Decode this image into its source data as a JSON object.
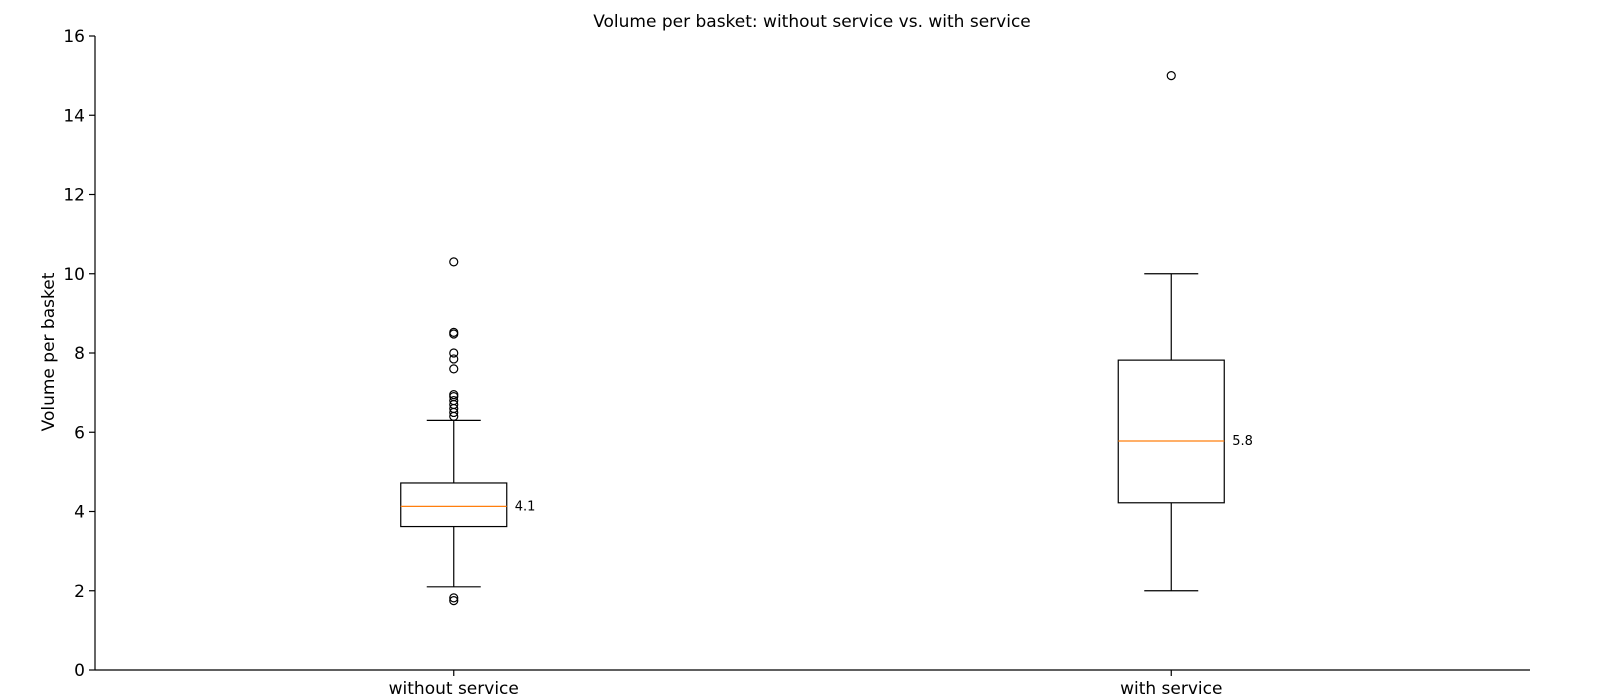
{
  "chart_data": {
    "type": "boxplot",
    "title": "Volume per basket: without service vs. with service",
    "xlabel": "",
    "ylabel": "Volume per basket",
    "ylim": [
      0,
      16
    ],
    "yticks": [
      "0",
      "2",
      "4",
      "6",
      "8",
      "10",
      "12",
      "14",
      "16"
    ],
    "grid": false,
    "categories": [
      "without service",
      "with service"
    ],
    "boxes": [
      {
        "category": "without service",
        "whisker_low": 2.1,
        "q1": 3.62,
        "median": 4.13,
        "q3": 4.72,
        "whisker_high": 6.3,
        "median_label": "4.1",
        "outliers": [
          1.75,
          1.82,
          6.4,
          6.5,
          6.6,
          6.7,
          6.8,
          6.9,
          6.95,
          7.6,
          7.85,
          8.0,
          8.48,
          8.52,
          10.3
        ]
      },
      {
        "category": "with service",
        "whisker_low": 2.0,
        "q1": 4.22,
        "median": 5.78,
        "q3": 7.82,
        "whisker_high": 10.0,
        "median_label": "5.8",
        "outliers": [
          15.0
        ]
      }
    ],
    "colors": {
      "box": "#000000",
      "median": "#ff7f0e",
      "axis": "#000000"
    }
  }
}
